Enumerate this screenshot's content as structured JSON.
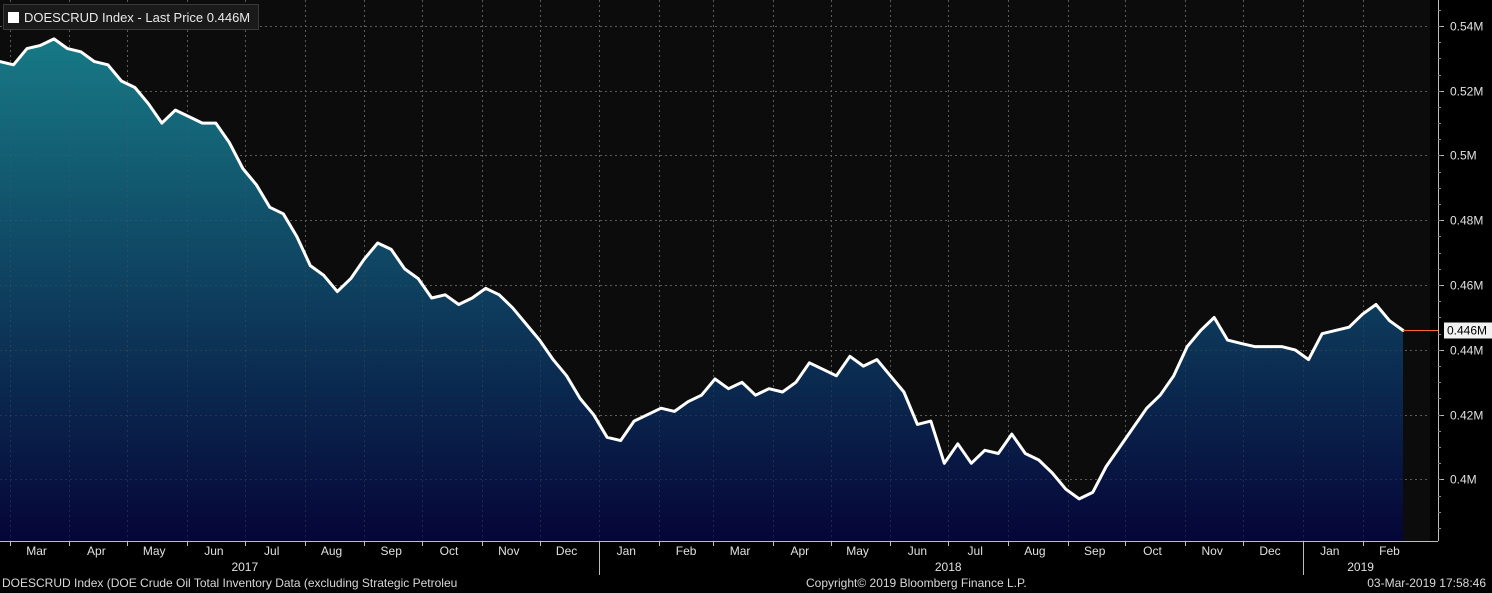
{
  "legend": {
    "label": "DOESCRUD Index - Last Price 0.446M"
  },
  "footer": {
    "description": "DOESCRUD Index (DOE Crude Oil Total Inventory Data (excluding Strategic Petroleu",
    "copyright": "Copyright© 2019 Bloomberg Finance L.P.",
    "timestamp": "03-Mar-2019 17:58:46"
  },
  "colors": {
    "background_top": "#0d0d0d",
    "area_top": "#177a86",
    "area_bottom": "#050537",
    "line": "#ffffff",
    "last_price_marker": "#ff6633",
    "grid": "#5a5a5a"
  },
  "chart_data": {
    "type": "area",
    "y_unit": "M",
    "ylim": [
      0.381,
      0.548
    ],
    "y_ticks": [
      {
        "value": 0.54,
        "label": "0.54M"
      },
      {
        "value": 0.52,
        "label": "0.52M"
      },
      {
        "value": 0.5,
        "label": "0.5M"
      },
      {
        "value": 0.48,
        "label": "0.48M"
      },
      {
        "value": 0.46,
        "label": "0.46M"
      },
      {
        "value": 0.44,
        "label": "0.44M"
      },
      {
        "value": 0.42,
        "label": "0.42M"
      },
      {
        "value": 0.4,
        "label": "0.4M"
      }
    ],
    "last_price": {
      "value": 0.446,
      "label": "0.446M"
    },
    "xlim": [
      "2017-02-24",
      "2019-03-08"
    ],
    "x_month_ticks": [
      {
        "date": "2017-03-15",
        "label": "Mar"
      },
      {
        "date": "2017-04-15",
        "label": "Apr"
      },
      {
        "date": "2017-05-15",
        "label": "May"
      },
      {
        "date": "2017-06-15",
        "label": "Jun"
      },
      {
        "date": "2017-07-15",
        "label": "Jul"
      },
      {
        "date": "2017-08-15",
        "label": "Aug"
      },
      {
        "date": "2017-09-15",
        "label": "Sep"
      },
      {
        "date": "2017-10-15",
        "label": "Oct"
      },
      {
        "date": "2017-11-15",
        "label": "Nov"
      },
      {
        "date": "2017-12-15",
        "label": "Dec"
      },
      {
        "date": "2018-01-15",
        "label": "Jan"
      },
      {
        "date": "2018-02-15",
        "label": "Feb"
      },
      {
        "date": "2018-03-15",
        "label": "Mar"
      },
      {
        "date": "2018-04-15",
        "label": "Apr"
      },
      {
        "date": "2018-05-15",
        "label": "May"
      },
      {
        "date": "2018-06-15",
        "label": "Jun"
      },
      {
        "date": "2018-07-15",
        "label": "Jul"
      },
      {
        "date": "2018-08-15",
        "label": "Aug"
      },
      {
        "date": "2018-09-15",
        "label": "Sep"
      },
      {
        "date": "2018-10-15",
        "label": "Oct"
      },
      {
        "date": "2018-11-15",
        "label": "Nov"
      },
      {
        "date": "2018-12-15",
        "label": "Dec"
      },
      {
        "date": "2019-01-15",
        "label": "Jan"
      },
      {
        "date": "2019-02-15",
        "label": "Feb"
      }
    ],
    "x_year_labels": [
      {
        "date": "2017-07-01",
        "label": "2017"
      },
      {
        "date": "2018-07-01",
        "label": "2018"
      },
      {
        "date": "2019-01-31",
        "label": "2019"
      }
    ],
    "x_year_dividers": [
      "2018-01-01",
      "2019-01-01"
    ],
    "grid": true,
    "series": [
      {
        "x": [
          "2017-02-24",
          "2017-03-03",
          "2017-03-10",
          "2017-03-17",
          "2017-03-24",
          "2017-03-31",
          "2017-04-07",
          "2017-04-14",
          "2017-04-21",
          "2017-04-28",
          "2017-05-05",
          "2017-05-12",
          "2017-05-19",
          "2017-05-26",
          "2017-06-02",
          "2017-06-09",
          "2017-06-16",
          "2017-06-23",
          "2017-06-30",
          "2017-07-07",
          "2017-07-14",
          "2017-07-21",
          "2017-07-28",
          "2017-08-04",
          "2017-08-11",
          "2017-08-18",
          "2017-08-25",
          "2017-09-01",
          "2017-09-08",
          "2017-09-15",
          "2017-09-22",
          "2017-09-29",
          "2017-10-06",
          "2017-10-13",
          "2017-10-20",
          "2017-10-27",
          "2017-11-03",
          "2017-11-10",
          "2017-11-17",
          "2017-11-24",
          "2017-12-01",
          "2017-12-08",
          "2017-12-15",
          "2017-12-22",
          "2017-12-29",
          "2018-01-05",
          "2018-01-12",
          "2018-01-19",
          "2018-01-26",
          "2018-02-02",
          "2018-02-09",
          "2018-02-16",
          "2018-02-23",
          "2018-03-02",
          "2018-03-09",
          "2018-03-16",
          "2018-03-23",
          "2018-03-30",
          "2018-04-06",
          "2018-04-13",
          "2018-04-20",
          "2018-04-27",
          "2018-05-04",
          "2018-05-11",
          "2018-05-18",
          "2018-05-25",
          "2018-06-01",
          "2018-06-08",
          "2018-06-15",
          "2018-06-22",
          "2018-06-29",
          "2018-07-06",
          "2018-07-13",
          "2018-07-20",
          "2018-07-27",
          "2018-08-03",
          "2018-08-10",
          "2018-08-17",
          "2018-08-24",
          "2018-08-31",
          "2018-09-07",
          "2018-09-14",
          "2018-09-21",
          "2018-09-28",
          "2018-10-05",
          "2018-10-12",
          "2018-10-19",
          "2018-10-26",
          "2018-11-02",
          "2018-11-09",
          "2018-11-16",
          "2018-11-23",
          "2018-11-30",
          "2018-12-07",
          "2018-12-14",
          "2018-12-21",
          "2018-12-28",
          "2019-01-04",
          "2019-01-11",
          "2019-01-18",
          "2019-01-25",
          "2019-02-01",
          "2019-02-08",
          "2019-02-15",
          "2019-02-22"
        ],
        "values": [
          0.529,
          0.528,
          0.533,
          0.534,
          0.536,
          0.533,
          0.532,
          0.529,
          0.528,
          0.523,
          0.521,
          0.516,
          0.51,
          0.514,
          0.512,
          0.51,
          0.51,
          0.504,
          0.496,
          0.491,
          0.484,
          0.482,
          0.475,
          0.466,
          0.463,
          0.458,
          0.462,
          0.468,
          0.473,
          0.471,
          0.465,
          0.462,
          0.456,
          0.457,
          0.454,
          0.456,
          0.459,
          0.457,
          0.453,
          0.448,
          0.443,
          0.437,
          0.432,
          0.425,
          0.42,
          0.413,
          0.412,
          0.418,
          0.42,
          0.422,
          0.421,
          0.424,
          0.426,
          0.431,
          0.428,
          0.43,
          0.426,
          0.428,
          0.427,
          0.43,
          0.436,
          0.434,
          0.432,
          0.438,
          0.435,
          0.437,
          0.432,
          0.427,
          0.417,
          0.418,
          0.405,
          0.411,
          0.405,
          0.409,
          0.408,
          0.414,
          0.408,
          0.406,
          0.402,
          0.397,
          0.394,
          0.396,
          0.404,
          0.41,
          0.416,
          0.422,
          0.426,
          0.432,
          0.441,
          0.446,
          0.45,
          0.443,
          0.442,
          0.441,
          0.441,
          0.441,
          0.44,
          0.437,
          0.445,
          0.446,
          0.447,
          0.451,
          0.454,
          0.449,
          0.446
        ]
      }
    ]
  }
}
